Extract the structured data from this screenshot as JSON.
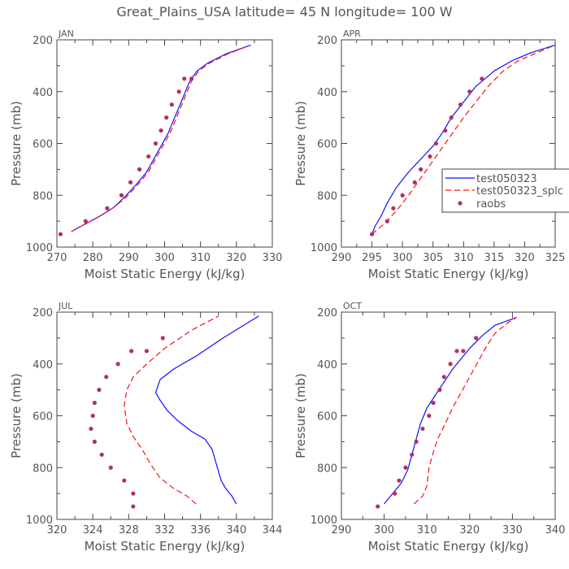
{
  "page": {
    "title": "Great_Plains_USA  latitude= 45 N longitude= 100 W"
  },
  "legend": {
    "entries": [
      {
        "label": "test050323",
        "style": "solid",
        "color": "#1010ff"
      },
      {
        "label": "test050323_splc",
        "style": "dashed",
        "color": "#ff1010"
      },
      {
        "label": "raobs",
        "style": "dot",
        "color": "#b0306a"
      }
    ]
  },
  "chart_data": [
    {
      "type": "line",
      "panel_label": "JAN",
      "xlabel": "Moist Static Energy (kJ/kg)",
      "ylabel": "Pressure (mb)",
      "xlim": [
        270,
        330
      ],
      "ylim": [
        1000,
        200
      ],
      "xticks": [
        270,
        280,
        290,
        300,
        310,
        320,
        330
      ],
      "yticks": [
        200,
        400,
        600,
        800,
        1000
      ],
      "series": [
        {
          "name": "test050323",
          "x": [
            274,
            278,
            282,
            286,
            289,
            292,
            295,
            297,
            299,
            301,
            302.5,
            304,
            305.5,
            307,
            309,
            312,
            317,
            324
          ],
          "y": [
            940,
            910,
            880,
            845,
            805,
            760,
            710,
            660,
            610,
            560,
            510,
            460,
            410,
            360,
            320,
            290,
            255,
            220
          ]
        },
        {
          "name": "test050323_splc",
          "x": [
            274,
            278,
            282,
            286,
            289.5,
            292.5,
            295.5,
            297.5,
            299.5,
            301.5,
            303,
            304.5,
            306,
            307.5,
            309.5,
            312.5,
            317.5,
            324
          ],
          "y": [
            940,
            910,
            880,
            845,
            805,
            760,
            710,
            660,
            610,
            560,
            510,
            460,
            410,
            360,
            320,
            290,
            255,
            220
          ]
        },
        {
          "name": "raobs",
          "x": [
            271,
            278,
            284,
            288,
            290.5,
            293,
            295.5,
            297.5,
            299,
            300.5,
            302,
            304,
            305.5,
            307.5
          ],
          "y": [
            950,
            900,
            850,
            800,
            750,
            700,
            650,
            600,
            550,
            500,
            450,
            400,
            350,
            350
          ]
        }
      ]
    },
    {
      "type": "line",
      "panel_label": "APR",
      "xlabel": "Moist Static Energy (kJ/kg)",
      "ylabel": "Pressure (mb)",
      "xlim": [
        290,
        325
      ],
      "ylim": [
        1000,
        200
      ],
      "xticks": [
        290,
        295,
        300,
        305,
        310,
        315,
        320,
        325
      ],
      "yticks": [
        200,
        400,
        600,
        800,
        1000
      ],
      "series": [
        {
          "name": "test050323",
          "x": [
            295,
            295.5,
            296.5,
            297.5,
            299,
            301,
            303,
            305,
            306.5,
            308,
            310,
            312,
            315,
            318,
            321,
            325
          ],
          "y": [
            950,
            920,
            880,
            830,
            770,
            710,
            660,
            610,
            560,
            500,
            440,
            380,
            320,
            280,
            250,
            220
          ]
        },
        {
          "name": "test050323_splc",
          "x": [
            295,
            297,
            299,
            301,
            302.5,
            304,
            305.5,
            307,
            308.5,
            310,
            312,
            314,
            316.5,
            319,
            322,
            325
          ],
          "y": [
            950,
            910,
            860,
            800,
            750,
            700,
            650,
            600,
            550,
            500,
            440,
            380,
            320,
            280,
            250,
            220
          ]
        },
        {
          "name": "raobs",
          "x": [
            295,
            297.5,
            298.5,
            300,
            302,
            303,
            304.5,
            305.5,
            307,
            308,
            309.5,
            311,
            313
          ],
          "y": [
            950,
            900,
            850,
            800,
            750,
            700,
            650,
            600,
            550,
            500,
            450,
            400,
            350
          ]
        }
      ]
    },
    {
      "type": "line",
      "panel_label": "JUL",
      "xlabel": "Moist Static Energy (kJ/kg)",
      "ylabel": "Pressure (mb)",
      "xlim": [
        320,
        344
      ],
      "ylim": [
        1000,
        200
      ],
      "xticks": [
        320,
        324,
        328,
        332,
        336,
        340,
        344
      ],
      "yticks": [
        200,
        400,
        600,
        800,
        1000
      ],
      "series": [
        {
          "name": "test050323",
          "x": [
            340,
            339.5,
            338.8,
            338.3,
            337.8,
            337.3,
            336.5,
            335,
            333.5,
            332.3,
            331.5,
            331,
            331.5,
            333,
            335.5,
            338.5,
            342.5
          ],
          "y": [
            940,
            910,
            880,
            850,
            790,
            730,
            690,
            660,
            620,
            580,
            540,
            510,
            460,
            420,
            370,
            300,
            215
          ]
        },
        {
          "name": "test050323_splc",
          "x": [
            335.5,
            334.5,
            333,
            331.5,
            330.5,
            329.5,
            328.5,
            327.8,
            327.5,
            327.8,
            328.5,
            330,
            332,
            335,
            338
          ],
          "y": [
            940,
            910,
            880,
            840,
            790,
            730,
            680,
            630,
            560,
            500,
            450,
            400,
            340,
            270,
            215
          ]
        },
        {
          "name": "raobs",
          "x": [
            328.5,
            328.5,
            327.5,
            326,
            325,
            324.2,
            323.8,
            324,
            324.2,
            324.7,
            325.5,
            326.8,
            328.3,
            330,
            331.8
          ],
          "y": [
            950,
            900,
            850,
            800,
            750,
            700,
            650,
            600,
            550,
            500,
            450,
            400,
            350,
            350,
            300
          ]
        }
      ]
    },
    {
      "type": "line",
      "panel_label": "OCT",
      "xlabel": "Moist Static Energy (kJ/kg)",
      "ylabel": "Pressure (mb)",
      "xlim": [
        290,
        340
      ],
      "ylim": [
        1000,
        200
      ],
      "xticks": [
        290,
        300,
        310,
        320,
        330,
        340
      ],
      "yticks": [
        200,
        400,
        600,
        800,
        1000
      ],
      "series": [
        {
          "name": "test050323",
          "x": [
            300,
            302,
            304,
            305.5,
            306.5,
            307.5,
            308.5,
            310,
            312,
            314,
            316,
            318,
            320,
            323,
            326,
            331
          ],
          "y": [
            940,
            900,
            860,
            810,
            750,
            690,
            630,
            570,
            520,
            470,
            420,
            380,
            340,
            290,
            250,
            220
          ]
        },
        {
          "name": "test050323_splc",
          "x": [
            307,
            309,
            310,
            310.5,
            311.5,
            312.5,
            314,
            316,
            318,
            320,
            322,
            324,
            326,
            329,
            331
          ],
          "y": [
            940,
            910,
            870,
            800,
            740,
            690,
            640,
            570,
            510,
            450,
            390,
            330,
            280,
            240,
            220
          ]
        },
        {
          "name": "raobs",
          "x": [
            298.5,
            302.5,
            303.5,
            305,
            306.5,
            307.5,
            309,
            310.5,
            311.5,
            313,
            314,
            315.5,
            317,
            318.5,
            321.5
          ],
          "y": [
            950,
            900,
            850,
            800,
            750,
            700,
            650,
            600,
            550,
            500,
            450,
            400,
            350,
            350,
            300
          ]
        }
      ]
    }
  ]
}
